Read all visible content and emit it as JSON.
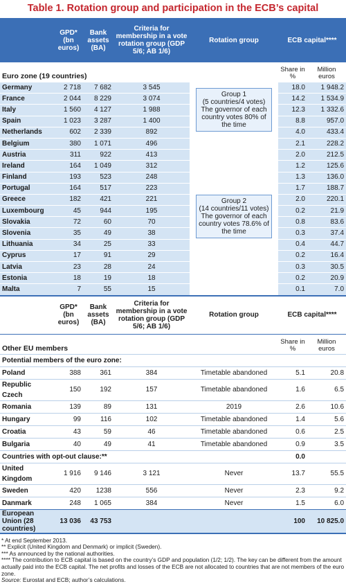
{
  "title": "Table 1. Rotation group and participation in the ECB’s capital",
  "header": {
    "gdp": "GPD* (bn euros)",
    "bank_assets": "Bank assets (BA)",
    "criteria": "Criteria for membership in a vote rotation group (GDP 5/6; AB 1/6)",
    "rotation_group": "Rotation group",
    "ecb_capital": "ECB capital****",
    "share": "Share in %",
    "million": "Million euros"
  },
  "euro_zone": {
    "label": "Euro zone (19 countries)",
    "groups": [
      {
        "name": "Group 1",
        "composition": "(5 countries/4 votes)",
        "note": "The governor of each country votes 80% of the time",
        "rows": [
          [
            "Germany",
            "2 718",
            "7 682",
            "3 545",
            "18.0",
            "1 948.2"
          ],
          [
            "France",
            "2 044",
            "8 229",
            "3 074",
            "14.2",
            "1 534.9"
          ],
          [
            "Italy",
            "1 560",
            "4 127",
            "1 988",
            "12.3",
            "1 332.6"
          ],
          [
            "Spain",
            "1 023",
            "3 287",
            "1 400",
            "8.8",
            "957.0"
          ],
          [
            "Netherlands",
            "602",
            "2 339",
            "892",
            "4.0",
            "433.4"
          ]
        ]
      },
      {
        "name": "Group 2",
        "composition": "(14 countries/11 votes)",
        "note": "The governor of each country votes 78.6% of the time",
        "rows": [
          [
            "Belgium",
            "380",
            "1 071",
            "496",
            "2.1",
            "228.2"
          ],
          [
            "Austria",
            "311",
            "922",
            "413",
            "2.0",
            "212.5"
          ],
          [
            "Ireland",
            "164",
            "1 049",
            "312",
            "1.2",
            "125.6"
          ],
          [
            "Finland",
            "193",
            "523",
            "248",
            "1.3",
            "136.0"
          ],
          [
            "Portugal",
            "164",
            "517",
            "223",
            "1.7",
            "188.7"
          ],
          [
            "Greece",
            "182",
            "421",
            "221",
            "2.0",
            "220.1"
          ],
          [
            "Luxembourg",
            "45",
            "944",
            "195",
            "0.2",
            "21.9"
          ],
          [
            "Slovakia",
            "72",
            "60",
            "70",
            "0.8",
            "83.6"
          ],
          [
            "Slovenia",
            "35",
            "49",
            "38",
            "0.3",
            "37.4"
          ],
          [
            "Lithuania",
            "34",
            "25",
            "33",
            "0.4",
            "44.7"
          ],
          [
            "Cyprus",
            "17",
            "91",
            "29",
            "0.2",
            "16.4"
          ],
          [
            "Latvia",
            "23",
            "28",
            "24",
            "0.3",
            "30.5"
          ],
          [
            "Estonia",
            "18",
            "19",
            "18",
            "0.2",
            "20.9"
          ],
          [
            "Malta",
            "7",
            "55",
            "15",
            "0.1",
            "7.0"
          ]
        ]
      }
    ]
  },
  "other": {
    "label": "Other EU members",
    "potential": {
      "label": "Potential members of the euro zone:",
      "rows": [
        [
          "Poland",
          "388",
          "361",
          "384",
          "Timetable abandoned",
          "5.1",
          "20.8"
        ],
        [
          "Republic Czech",
          "150",
          "192",
          "157",
          "Timetable abandoned",
          "1.6",
          "6.5"
        ],
        [
          "Romania",
          "139",
          "89",
          "131",
          "2019",
          "2.6",
          "10.6"
        ],
        [
          "Hungary",
          "99",
          "116",
          "102",
          "Timetable abandoned",
          "1.4",
          "5.6"
        ],
        [
          "Croatia",
          "43",
          "59",
          "46",
          "Timetable abandoned",
          "0.6",
          "2.5"
        ],
        [
          "Bulgaria",
          "40",
          "49",
          "41",
          "Timetable abandoned",
          "0.9",
          "3.5"
        ]
      ]
    },
    "opt_out": {
      "label": "Countries with opt-out clause:**",
      "share": "0.0",
      "rows": [
        [
          "United Kingdom",
          "1 916",
          "9 146",
          "3 121",
          "Never",
          "13.7",
          "55.5"
        ],
        [
          "Sweden",
          "420",
          "1238",
          "556",
          "Never",
          "2.3",
          "9.2"
        ],
        [
          "Danmark",
          "248",
          "1 065",
          "384",
          "Never",
          "1.5",
          "6.0"
        ]
      ]
    },
    "total": {
      "name": "European Union (28 countries)",
      "gdp": "13 036",
      "bank_assets": "43 753",
      "share": "100",
      "million": "10 825.0"
    }
  },
  "footnotes": [
    "* At end September 2013.",
    "** Explicit (United Kingdom and Denmark) or implicit (Sweden).",
    "*** As announced by the national authorities.",
    "**** The contribution to ECB capital is based on the country’s GDP and population (1/2; 1/2). The key can be different from the amount actually paid into the ECB capital. The net profits and losses of the ECB are not allocated to countries that are not members of the euro zone."
  ],
  "source": {
    "label": "Source:",
    "text": "Eurostat and ECB; author’s calculations."
  }
}
